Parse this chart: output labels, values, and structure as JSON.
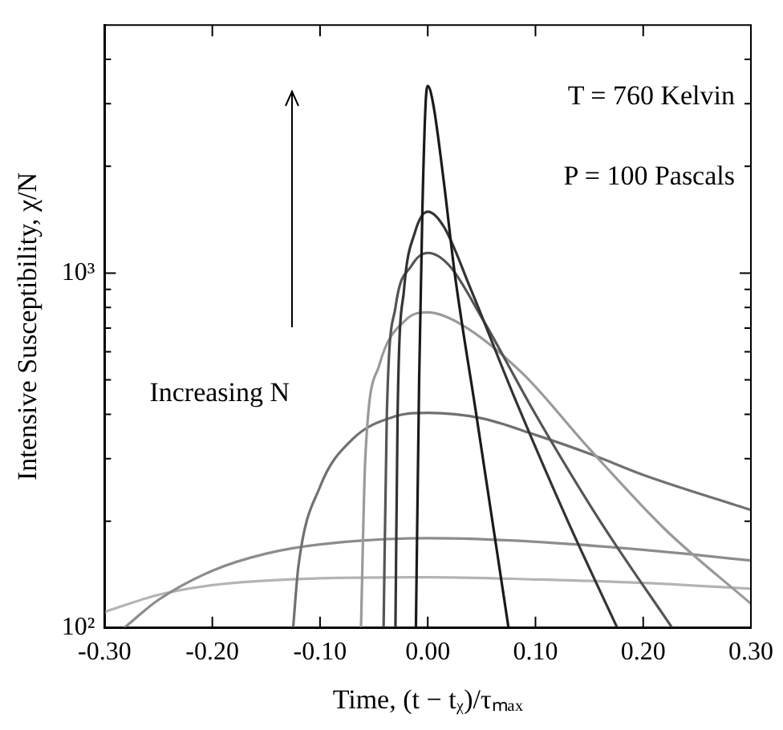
{
  "chart_data": {
    "type": "line",
    "xlabel": "Time, (t − tᵪ)/τₘₐₓ",
    "ylabel": "Intensive Susceptibility, χ/N",
    "log": "y",
    "xlim": [
      -0.3,
      0.3
    ],
    "ylim": [
      100,
      5000
    ],
    "xticks": [
      {
        "value": -0.3,
        "label": "-0.30"
      },
      {
        "value": -0.2,
        "label": "-0.20"
      },
      {
        "value": -0.1,
        "label": "-0.10"
      },
      {
        "value": 0,
        "label": "0.00"
      },
      {
        "value": 0.1,
        "label": "0.10"
      },
      {
        "value": 0.2,
        "label": "0.20"
      },
      {
        "value": 0.3,
        "label": "0.30"
      }
    ],
    "yticks": [
      {
        "value": 100,
        "label": "10²"
      },
      {
        "value": 200,
        "label": null
      },
      {
        "value": 300,
        "label": null
      },
      {
        "value": 400,
        "label": null
      },
      {
        "value": 500,
        "label": null
      },
      {
        "value": 600,
        "label": null
      },
      {
        "value": 700,
        "label": null
      },
      {
        "value": 800,
        "label": null
      },
      {
        "value": 900,
        "label": null
      },
      {
        "value": 1000,
        "label": "10³"
      },
      {
        "value": 2000,
        "label": null
      },
      {
        "value": 3000,
        "label": null
      },
      {
        "value": 4000,
        "label": null
      }
    ],
    "grid": false,
    "legend": false,
    "marker": "none",
    "line_style": "solid",
    "annotations": [
      "T = 760 Kelvin",
      "P = 100 Pascals",
      "Increasing N"
    ],
    "series": [
      {
        "color": "#1a1a1a",
        "x": [
          -0.011,
          -0.008,
          -0.005,
          -0.002,
          0,
          0.005,
          0.015,
          0.025,
          0.045,
          0.06,
          0.075
        ],
        "values": [
          100,
          500,
          1500,
          3000,
          3370,
          3000,
          1800,
          1000,
          400,
          200,
          100
        ]
      },
      {
        "color": "#333333",
        "x": [
          -0.03,
          -0.028,
          -0.022,
          -0.012,
          0,
          0.015,
          0.04,
          0.08,
          0.13,
          0.176
        ],
        "values": [
          100,
          400,
          900,
          1300,
          1490,
          1350,
          900,
          450,
          200,
          100
        ]
      },
      {
        "color": "#555555",
        "x": [
          -0.041,
          -0.038,
          -0.03,
          -0.015,
          0,
          0.02,
          0.05,
          0.1,
          0.16,
          0.227
        ],
        "values": [
          100,
          400,
          800,
          1050,
          1140,
          1050,
          750,
          400,
          200,
          100
        ]
      },
      {
        "color": "#9a9a9a",
        "x": [
          -0.062,
          -0.058,
          -0.045,
          -0.02,
          0,
          0.03,
          0.087,
          0.15,
          0.22,
          0.3
        ],
        "values": [
          100,
          300,
          550,
          740,
          775,
          720,
          525,
          320,
          190,
          117
        ]
      },
      {
        "color": "#707070",
        "x": [
          -0.125,
          -0.12,
          -0.1,
          -0.07,
          -0.03,
          0,
          0.05,
          0.1,
          0.15,
          0.2,
          0.3
        ],
        "values": [
          100,
          150,
          250,
          340,
          395,
          404,
          390,
          350,
          310,
          270,
          215
        ]
      },
      {
        "color": "#8c8c8c",
        "x": [
          -0.282,
          -0.25,
          -0.2,
          -0.15,
          -0.1,
          0,
          0.1,
          0.2,
          0.3
        ],
        "values": [
          100,
          120,
          145,
          162,
          172,
          179,
          175,
          166,
          155
        ]
      },
      {
        "color": "#b4b4b4",
        "x": [
          -0.3,
          -0.25,
          -0.2,
          -0.1,
          0,
          0.1,
          0.2,
          0.3
        ],
        "values": [
          111,
          124,
          132,
          138,
          139,
          137,
          134,
          129
        ]
      }
    ]
  }
}
